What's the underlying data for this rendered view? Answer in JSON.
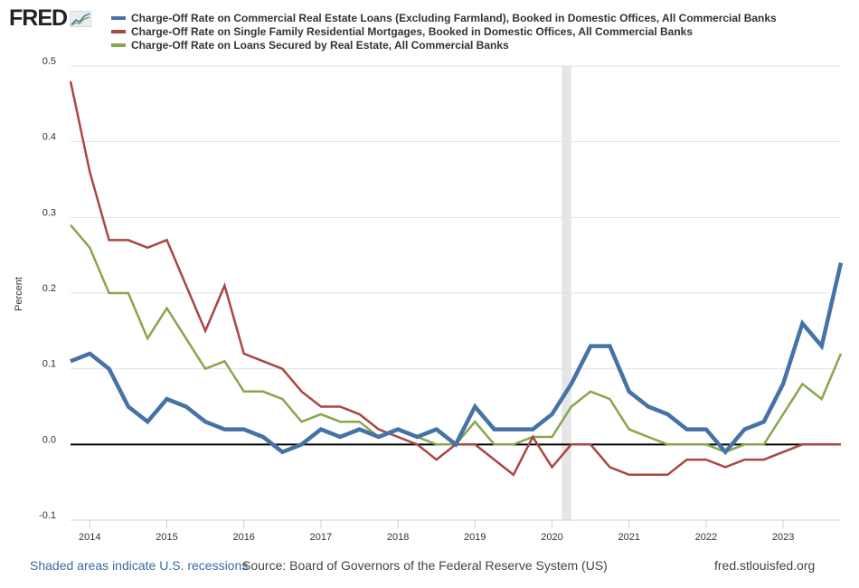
{
  "header": {
    "logo_text": "FRED",
    "logo_icon": "line-graph-icon"
  },
  "legend": [
    {
      "label": "Charge-Off Rate on Commercial Real Estate Loans (Excluding Farmland), Booked in Domestic Offices, All Commercial Banks",
      "color": "#4572a7"
    },
    {
      "label": "Charge-Off Rate on Single Family Residential Mortgages, Booked in Domestic Offices, All Commercial Banks",
      "color": "#aa4643"
    },
    {
      "label": "Charge-Off Rate on Loans Secured by Real Estate, All Commercial Banks",
      "color": "#89a54e"
    }
  ],
  "footer": {
    "recession_note": "Shaded areas indicate U.S. recessions",
    "source": "Source: Board of Governors of the Federal Reserve System (US)",
    "site": "fred.stlouisfed.org"
  },
  "chart_data": {
    "type": "line",
    "title": "",
    "xlabel": "",
    "ylabel": "Percent",
    "ylim": [
      -0.1,
      0.5
    ],
    "yticks": [
      -0.1,
      0.0,
      0.1,
      0.2,
      0.3,
      0.4,
      0.5
    ],
    "ytick_labels": [
      "-0.1",
      "0.0",
      "0.1",
      "0.2",
      "0.3",
      "0.4",
      "0.5"
    ],
    "xlim": [
      2013.75,
      2023.75
    ],
    "xticks": [
      2014,
      2015,
      2016,
      2017,
      2018,
      2019,
      2020,
      2021,
      2022,
      2023
    ],
    "xtick_labels": [
      "2014",
      "2015",
      "2016",
      "2017",
      "2018",
      "2019",
      "2020",
      "2021",
      "2022",
      "2023"
    ],
    "grid": true,
    "zero_line": true,
    "legend_position": "top",
    "recessions": [
      {
        "start": 2020.125,
        "end": 2020.25
      }
    ],
    "x": [
      "2013-Q4",
      "2014-Q1",
      "2014-Q2",
      "2014-Q3",
      "2014-Q4",
      "2015-Q1",
      "2015-Q2",
      "2015-Q3",
      "2015-Q4",
      "2016-Q1",
      "2016-Q2",
      "2016-Q3",
      "2016-Q4",
      "2017-Q1",
      "2017-Q2",
      "2017-Q3",
      "2017-Q4",
      "2018-Q1",
      "2018-Q2",
      "2018-Q3",
      "2018-Q4",
      "2019-Q1",
      "2019-Q2",
      "2019-Q3",
      "2019-Q4",
      "2020-Q1",
      "2020-Q2",
      "2020-Q3",
      "2020-Q4",
      "2021-Q1",
      "2021-Q2",
      "2021-Q3",
      "2021-Q4",
      "2022-Q1",
      "2022-Q2",
      "2022-Q3",
      "2022-Q4",
      "2023-Q1",
      "2023-Q2",
      "2023-Q3",
      "2023-Q4"
    ],
    "x_start": 2013.75,
    "x_step": 0.25,
    "series": [
      {
        "name": "Charge-Off Rate on Commercial Real Estate Loans (Excluding Farmland), Booked in Domestic Offices, All Commercial Banks",
        "color": "#4572a7",
        "values": [
          0.11,
          0.12,
          0.1,
          0.05,
          0.03,
          0.06,
          0.05,
          0.03,
          0.02,
          0.02,
          0.01,
          -0.01,
          0.0,
          0.02,
          0.01,
          0.02,
          0.01,
          0.02,
          0.01,
          0.02,
          0.0,
          0.05,
          0.02,
          0.02,
          0.02,
          0.04,
          0.08,
          0.13,
          0.13,
          0.07,
          0.05,
          0.04,
          0.02,
          0.02,
          -0.01,
          0.02,
          0.03,
          0.08,
          0.16,
          0.13,
          0.24
        ]
      },
      {
        "name": "Charge-Off Rate on Single Family Residential Mortgages, Booked in Domestic Offices, All Commercial Banks",
        "color": "#aa4643",
        "values": [
          0.48,
          0.36,
          0.27,
          0.27,
          0.26,
          0.27,
          0.21,
          0.15,
          0.21,
          0.12,
          0.11,
          0.1,
          0.07,
          0.05,
          0.05,
          0.04,
          0.02,
          0.01,
          0.0,
          -0.02,
          0.0,
          0.0,
          -0.02,
          -0.04,
          0.01,
          -0.03,
          0.0,
          0.0,
          -0.03,
          -0.04,
          -0.04,
          -0.04,
          -0.02,
          -0.02,
          -0.03,
          -0.02,
          -0.02,
          -0.01,
          0.0,
          0.0,
          0.0
        ]
      },
      {
        "name": "Charge-Off Rate on Loans Secured by Real Estate, All Commercial Banks",
        "color": "#89a54e",
        "values": [
          0.29,
          0.26,
          0.2,
          0.2,
          0.14,
          0.18,
          0.14,
          0.1,
          0.11,
          0.07,
          0.07,
          0.06,
          0.03,
          0.04,
          0.03,
          0.03,
          0.01,
          0.02,
          0.01,
          0.0,
          0.0,
          0.03,
          0.0,
          0.0,
          0.01,
          0.01,
          0.05,
          0.07,
          0.06,
          0.02,
          0.01,
          0.0,
          0.0,
          0.0,
          -0.01,
          0.0,
          0.0,
          0.04,
          0.08,
          0.06,
          0.12
        ]
      }
    ]
  }
}
